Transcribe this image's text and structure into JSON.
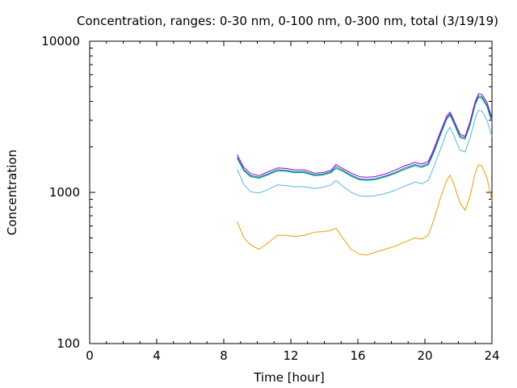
{
  "chart_data": {
    "type": "line",
    "title": "Concentration, ranges: 0-30 nm, 0-100 nm, 0-300 nm, total (3/19/19)",
    "xlabel": "Time [hour]",
    "ylabel": "Concentration",
    "xlim": [
      0,
      24
    ],
    "ylim": [
      100,
      10000
    ],
    "y_scale": "log",
    "grid": false,
    "legend": "none",
    "x_ticks": [
      {
        "value": 0,
        "label": "0"
      },
      {
        "value": 4,
        "label": "4"
      },
      {
        "value": 8,
        "label": "8"
      },
      {
        "value": 12,
        "label": "12"
      },
      {
        "value": 16,
        "label": "16"
      },
      {
        "value": 20,
        "label": "20"
      },
      {
        "value": 24,
        "label": "24"
      }
    ],
    "y_ticks": [
      {
        "value": 100,
        "label": "100"
      },
      {
        "value": 1000,
        "label": "1000"
      },
      {
        "value": 10000,
        "label": "10000"
      }
    ],
    "series": [
      {
        "color": "#e69f00",
        "x": [
          8.8,
          9.2,
          9.6,
          10.1,
          10.6,
          11.2,
          11.7,
          12.2,
          12.8,
          13.4,
          13.9,
          14.4,
          14.7,
          15.1,
          15.6,
          16.1,
          16.5,
          17.0,
          17.6,
          18.2,
          18.8,
          19.4,
          19.8,
          20.2,
          20.5,
          20.9,
          21.3,
          21.5,
          21.7,
          22.1,
          22.4,
          22.7,
          23.0,
          23.2,
          23.4,
          23.7,
          24.0
        ],
        "y": [
          640,
          500,
          450,
          420,
          460,
          520,
          520,
          510,
          520,
          545,
          550,
          560,
          580,
          500,
          420,
          390,
          385,
          400,
          420,
          440,
          470,
          500,
          490,
          520,
          640,
          900,
          1200,
          1300,
          1150,
          850,
          760,
          950,
          1350,
          1520,
          1500,
          1250,
          880
        ]
      },
      {
        "color": "#56b4e9",
        "x": [
          8.8,
          9.2,
          9.6,
          10.1,
          10.6,
          11.2,
          11.7,
          12.2,
          12.8,
          13.4,
          13.9,
          14.4,
          14.7,
          15.1,
          15.6,
          16.1,
          16.5,
          17.0,
          17.6,
          18.2,
          18.8,
          19.4,
          19.8,
          20.2,
          20.5,
          20.9,
          21.3,
          21.5,
          21.7,
          22.1,
          22.4,
          22.7,
          23.0,
          23.2,
          23.4,
          23.7,
          24.0
        ],
        "y": [
          1420,
          1130,
          1010,
          990,
          1040,
          1120,
          1110,
          1090,
          1090,
          1060,
          1080,
          1120,
          1200,
          1100,
          1000,
          950,
          940,
          950,
          980,
          1030,
          1100,
          1170,
          1140,
          1200,
          1450,
          1900,
          2500,
          2700,
          2400,
          1900,
          1850,
          2300,
          3100,
          3500,
          3450,
          3000,
          2350
        ]
      },
      {
        "color": "#009e73",
        "x": [
          8.8,
          9.2,
          9.6,
          10.1,
          10.6,
          11.2,
          11.7,
          12.2,
          12.8,
          13.4,
          13.9,
          14.4,
          14.7,
          15.1,
          15.6,
          16.1,
          16.5,
          17.0,
          17.6,
          18.2,
          18.8,
          19.4,
          19.8,
          20.2,
          20.5,
          20.9,
          21.3,
          21.5,
          21.7,
          22.1,
          22.4,
          22.7,
          23.0,
          23.2,
          23.4,
          23.7,
          24.0
        ],
        "y": [
          1680,
          1390,
          1270,
          1240,
          1300,
          1390,
          1380,
          1350,
          1350,
          1290,
          1300,
          1350,
          1440,
          1380,
          1280,
          1210,
          1200,
          1210,
          1260,
          1330,
          1420,
          1500,
          1460,
          1520,
          1800,
          2350,
          3050,
          3250,
          2900,
          2300,
          2250,
          2800,
          3800,
          4250,
          4200,
          3700,
          2900
        ]
      },
      {
        "color": "#0072b2",
        "x": [
          8.8,
          9.2,
          9.6,
          10.1,
          10.6,
          11.2,
          11.7,
          12.2,
          12.8,
          13.4,
          13.9,
          14.4,
          14.7,
          15.1,
          15.6,
          16.1,
          16.5,
          17.0,
          17.6,
          18.2,
          18.8,
          19.4,
          19.8,
          20.2,
          20.5,
          20.9,
          21.3,
          21.5,
          21.7,
          22.1,
          22.4,
          22.7,
          23.0,
          23.2,
          23.4,
          23.7,
          24.0
        ],
        "y": [
          1720,
          1410,
          1290,
          1260,
          1320,
          1410,
          1400,
          1370,
          1370,
          1310,
          1320,
          1370,
          1480,
          1400,
          1300,
          1230,
          1220,
          1230,
          1280,
          1350,
          1450,
          1530,
          1490,
          1550,
          1840,
          2400,
          3100,
          3300,
          2950,
          2350,
          2300,
          2850,
          3900,
          4350,
          4300,
          3800,
          3000
        ]
      },
      {
        "color": "#9400d3",
        "x": [
          8.8,
          9.2,
          9.6,
          10.1,
          10.6,
          11.2,
          11.7,
          12.2,
          12.8,
          13.4,
          13.9,
          14.4,
          14.7,
          15.1,
          15.6,
          16.1,
          16.5,
          17.0,
          17.6,
          18.2,
          18.8,
          19.4,
          19.8,
          20.2,
          20.5,
          20.9,
          21.3,
          21.5,
          21.7,
          22.1,
          22.4,
          22.7,
          23.0,
          23.2,
          23.4,
          23.7,
          24.0
        ],
        "y": [
          1780,
          1460,
          1330,
          1290,
          1360,
          1450,
          1440,
          1410,
          1410,
          1340,
          1350,
          1400,
          1530,
          1440,
          1340,
          1270,
          1260,
          1270,
          1320,
          1400,
          1500,
          1580,
          1540,
          1600,
          1900,
          2480,
          3200,
          3400,
          3050,
          2420,
          2350,
          2950,
          4000,
          4500,
          4450,
          3950,
          3100
        ]
      }
    ]
  }
}
